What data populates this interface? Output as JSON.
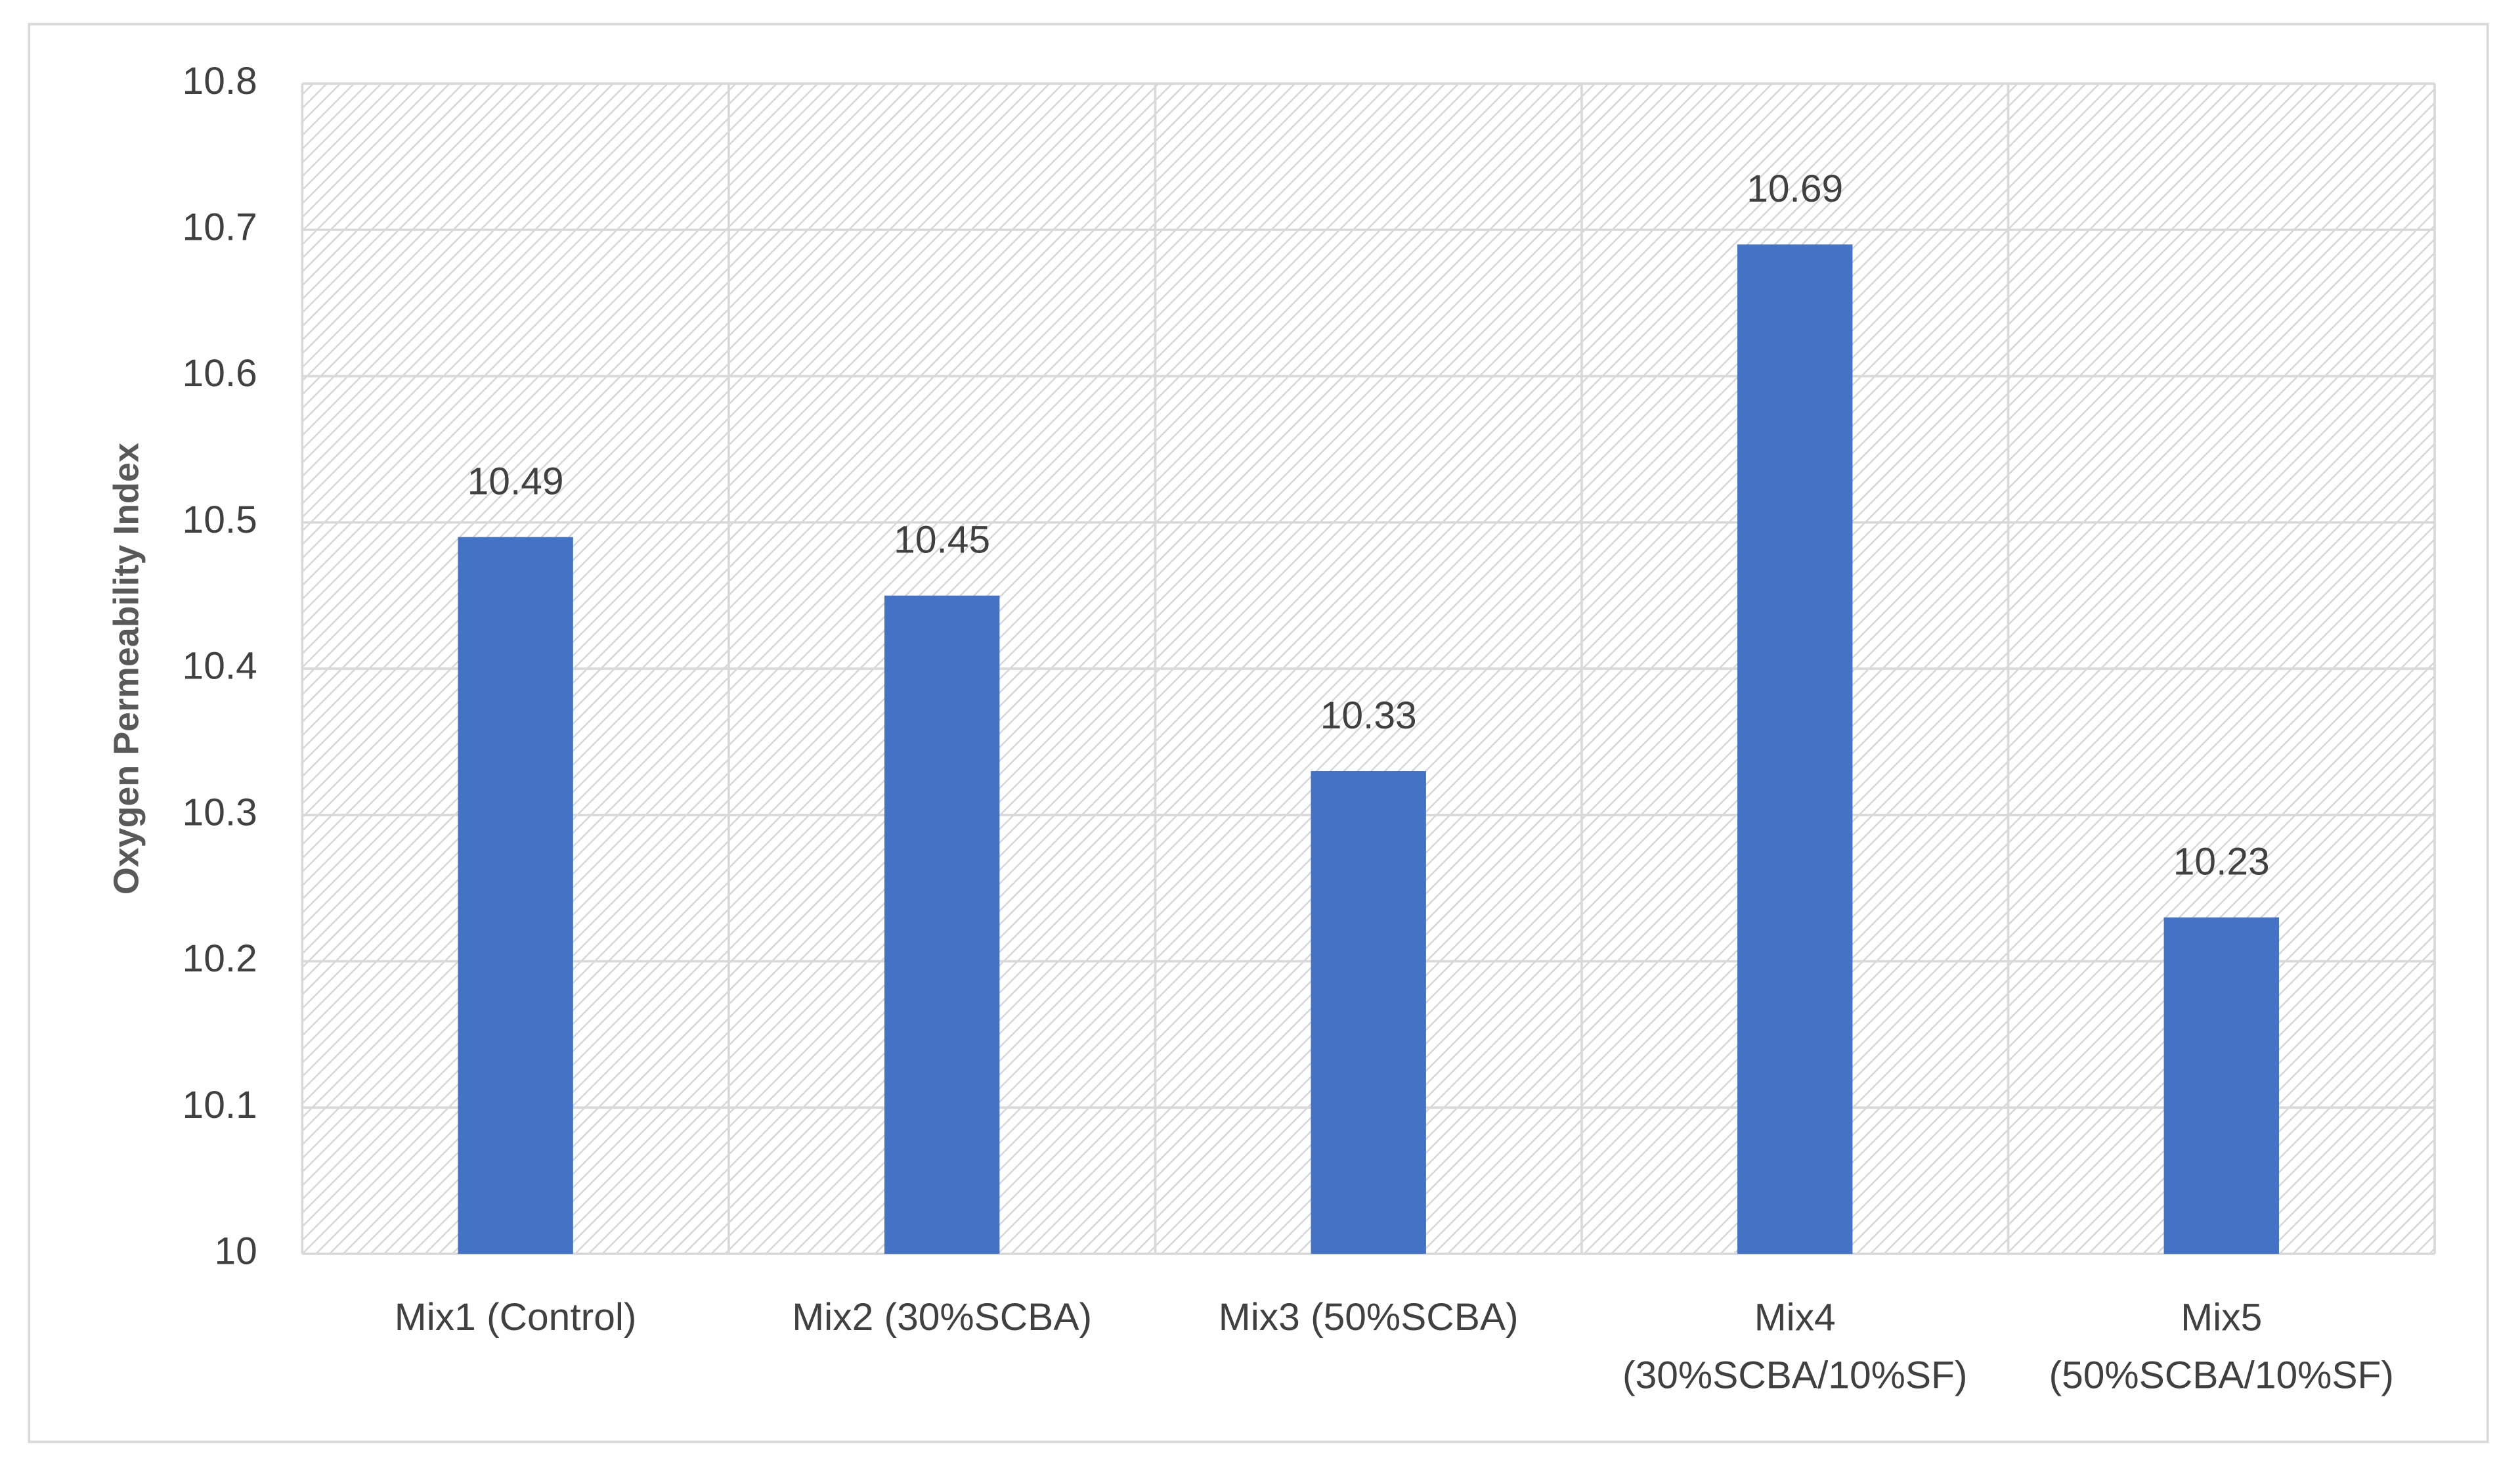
{
  "chart_data": {
    "type": "bar",
    "y_label": "Oxygen Permeability Index",
    "categories": [
      "Mix1 (Control)",
      "Mix2 (30%SCBA)",
      "Mix3 (50%SCBA)",
      "Mix4 (30%SCBA/10%SF)",
      "Mix5 (50%SCBA/10%SF)"
    ],
    "values": [
      10.49,
      10.45,
      10.33,
      10.69,
      10.23
    ],
    "color": "#4472c4",
    "ylim": [
      10,
      10.8
    ],
    "yticks": [
      10,
      10.1,
      10.2,
      10.3,
      10.4,
      10.5,
      10.6,
      10.7,
      10.8
    ],
    "grid": true
  }
}
